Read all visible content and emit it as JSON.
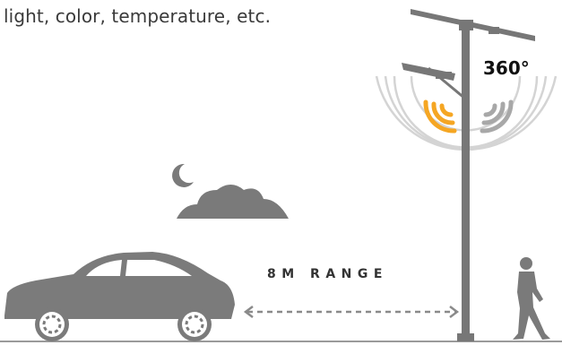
{
  "caption": "light, color, temperature, etc.",
  "angle_label": "360°",
  "range_label": "8M RANGE",
  "icons": [
    "street-lamp-icon",
    "radar-waves-icon",
    "moon-icon",
    "cloud-icon",
    "car-icon",
    "pedestrian-icon",
    "double-arrow-icon"
  ],
  "colors": {
    "accent": "#F5A623",
    "gray": "#7A7A7A",
    "light_gray": "#C8C8C8",
    "text": "#3A3A3A"
  }
}
